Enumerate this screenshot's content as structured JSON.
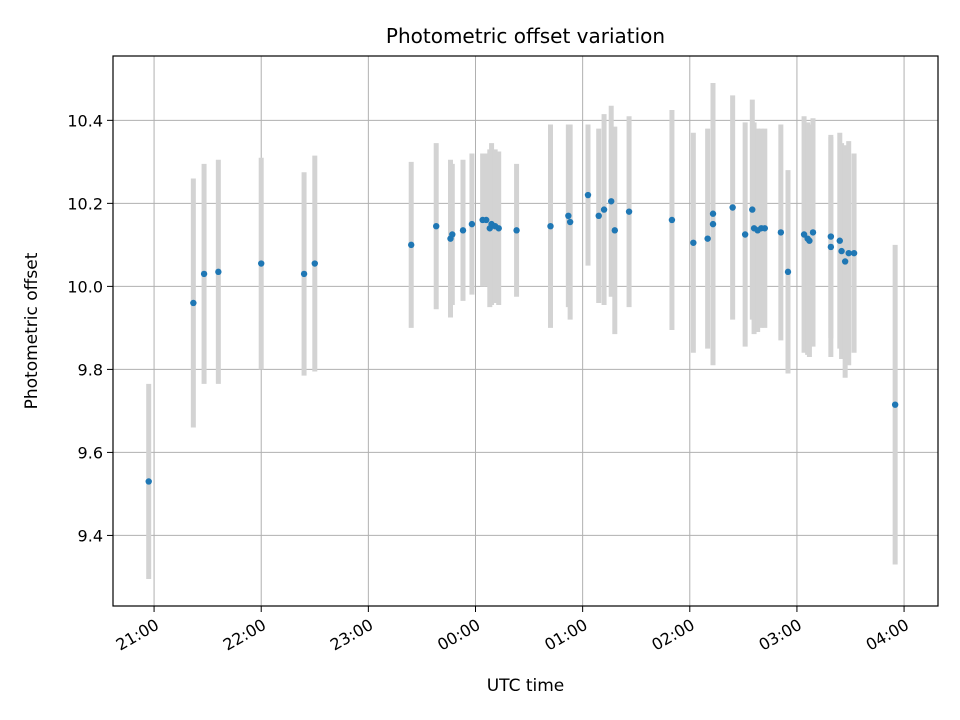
{
  "chart_data": {
    "type": "scatter",
    "title": "Photometric offset variation",
    "xlabel": "UTC time",
    "ylabel": "Photometric offset",
    "x_tick_labels": [
      "21:00",
      "22:00",
      "23:00",
      "00:00",
      "01:00",
      "02:00",
      "03:00",
      "04:00"
    ],
    "x_tick_hours": [
      21,
      22,
      23,
      24,
      25,
      26,
      27,
      28
    ],
    "y_ticks": [
      "9.4",
      "9.6",
      "9.8",
      "10.0",
      "10.2",
      "10.4"
    ],
    "y_tick_values": [
      9.4,
      9.6,
      9.8,
      10.0,
      10.2,
      10.4
    ],
    "xlim": [
      "20:37",
      "04:19"
    ],
    "ylim": [
      9.23,
      10.555
    ],
    "grid": true,
    "colors": {
      "points": "#1f77b4",
      "errorbars": "#d3d3d3",
      "grid": "#b0b0b0"
    },
    "series": [
      {
        "x": [
          "20:57",
          "21:22",
          "21:28",
          "21:36",
          "22:00",
          "22:24",
          "22:30",
          "23:24",
          "23:38",
          "23:46",
          "23:47",
          "23:53",
          "23:58",
          "00:04",
          "00:06",
          "00:08",
          "00:09",
          "00:11",
          "00:13",
          "00:23",
          "00:42",
          "00:52",
          "00:53",
          "01:03",
          "01:09",
          "01:12",
          "01:16",
          "01:18",
          "01:26",
          "01:50",
          "02:02",
          "02:10",
          "02:13",
          "02:13",
          "02:24",
          "02:31",
          "02:35",
          "02:36",
          "02:38",
          "02:40",
          "02:42",
          "02:51",
          "02:55",
          "03:04",
          "03:06",
          "03:07",
          "03:09",
          "03:19",
          "03:19",
          "03:24",
          "03:25",
          "03:27",
          "03:29",
          "03:32",
          "03:55"
        ],
        "y": [
          9.53,
          9.96,
          10.03,
          10.035,
          10.055,
          10.03,
          10.055,
          10.1,
          10.145,
          10.115,
          10.125,
          10.135,
          10.15,
          10.16,
          10.16,
          10.14,
          10.15,
          10.145,
          10.14,
          10.135,
          10.145,
          10.17,
          10.155,
          10.22,
          10.17,
          10.185,
          10.205,
          10.135,
          10.18,
          10.16,
          10.105,
          10.115,
          10.175,
          10.15,
          10.19,
          10.125,
          10.185,
          10.14,
          10.135,
          10.14,
          10.14,
          10.13,
          10.035,
          10.125,
          10.115,
          10.11,
          10.13,
          10.12,
          10.095,
          10.11,
          10.085,
          10.06,
          10.08,
          10.08,
          9.715
        ],
        "err": [
          0.235,
          0.3,
          0.265,
          0.27,
          0.255,
          0.245,
          0.26,
          0.2,
          0.2,
          0.19,
          0.17,
          0.17,
          0.17,
          0.16,
          0.16,
          0.19,
          0.195,
          0.185,
          0.185,
          0.16,
          0.245,
          0.22,
          0.235,
          0.17,
          0.21,
          0.23,
          0.23,
          0.25,
          0.23,
          0.265,
          0.265,
          0.265,
          0.24,
          0.34,
          0.27,
          0.27,
          0.265,
          0.255,
          0.245,
          0.24,
          0.24,
          0.26,
          0.245,
          0.285,
          0.28,
          0.28,
          0.275,
          0.245,
          0.265,
          0.26,
          0.26,
          0.28,
          0.27,
          0.24,
          0.385
        ]
      }
    ]
  }
}
